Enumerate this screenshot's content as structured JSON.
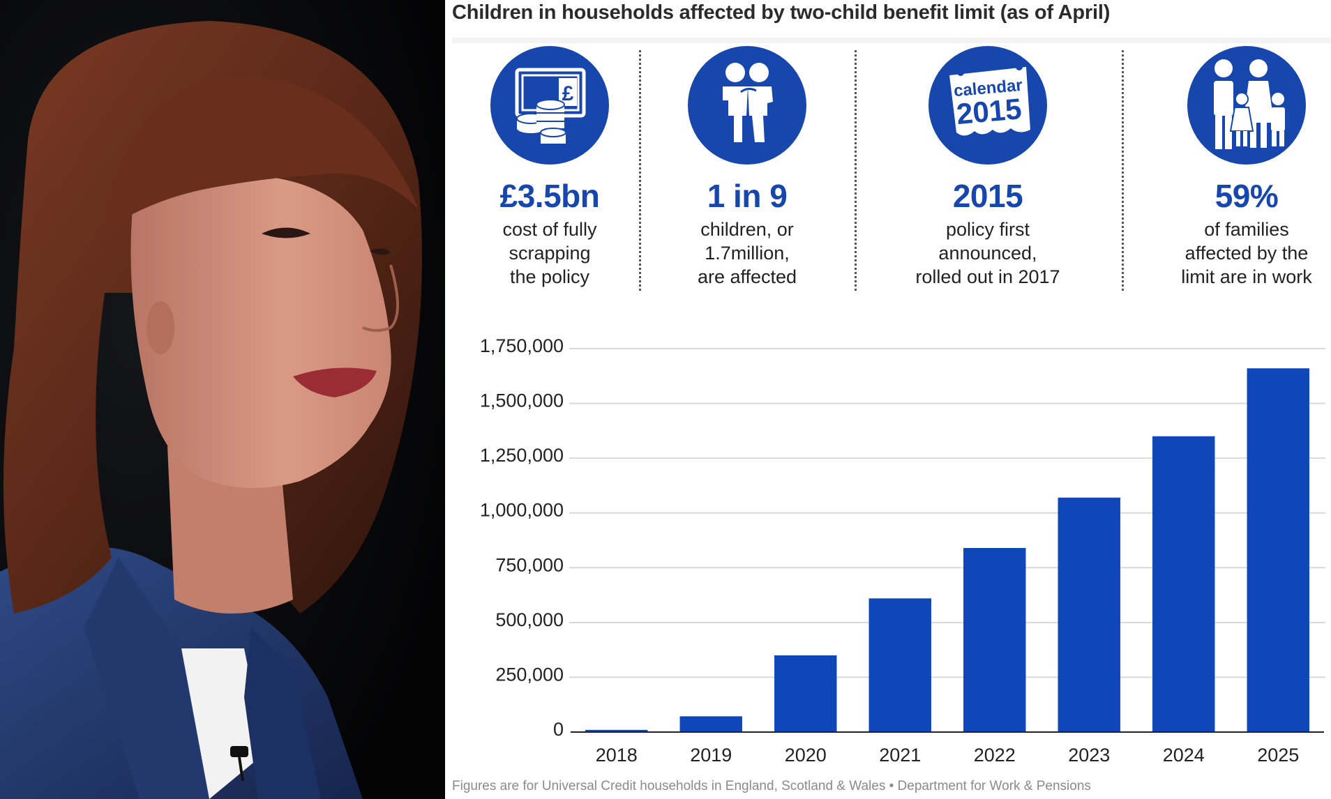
{
  "title": "Children in households affected by two-child benefit limit (as of April)",
  "photo": {
    "description_icon": "portrait-photo"
  },
  "stats": [
    {
      "icon": "money-icon",
      "value": "£3.5bn",
      "desc": [
        "cost of fully",
        "scrapping",
        "the policy"
      ],
      "icon_text": "£"
    },
    {
      "icon": "children-icon",
      "value": "1 in 9",
      "desc": [
        "children, or",
        "1.7million,",
        "are affected"
      ]
    },
    {
      "icon": "calendar-icon",
      "value": "2015",
      "desc": [
        "policy first",
        "announced,",
        "rolled out in 2017"
      ],
      "icon_text": "calendar",
      "icon_year": "2015"
    },
    {
      "icon": "family-icon",
      "value": "59%",
      "desc": [
        "of families",
        "affected by the",
        "limit are in work"
      ]
    }
  ],
  "colors": {
    "accent": "#1746ad",
    "bar": "#0f47b8"
  },
  "chart_data": {
    "type": "bar",
    "title": "Children in households affected by two-child benefit limit (as of April)",
    "categories": [
      "2018",
      "2019",
      "2020",
      "2021",
      "2022",
      "2023",
      "2024",
      "2025"
    ],
    "values": [
      10000,
      72000,
      350000,
      610000,
      840000,
      1070000,
      1350000,
      1660000
    ],
    "yticks": [
      0,
      250000,
      500000,
      750000,
      1000000,
      1250000,
      1500000,
      1750000
    ],
    "ytick_labels": [
      "0",
      "250,000",
      "500,000",
      "750,000",
      "1,000,000",
      "1,250,000",
      "1,500,000",
      "1,750,000"
    ],
    "ylim": [
      0,
      1750000
    ],
    "xlabel": "",
    "ylabel": "",
    "grid": true
  },
  "footer": "Figures are for Universal Credit households in England, Scotland & Wales • Department for Work & Pensions"
}
